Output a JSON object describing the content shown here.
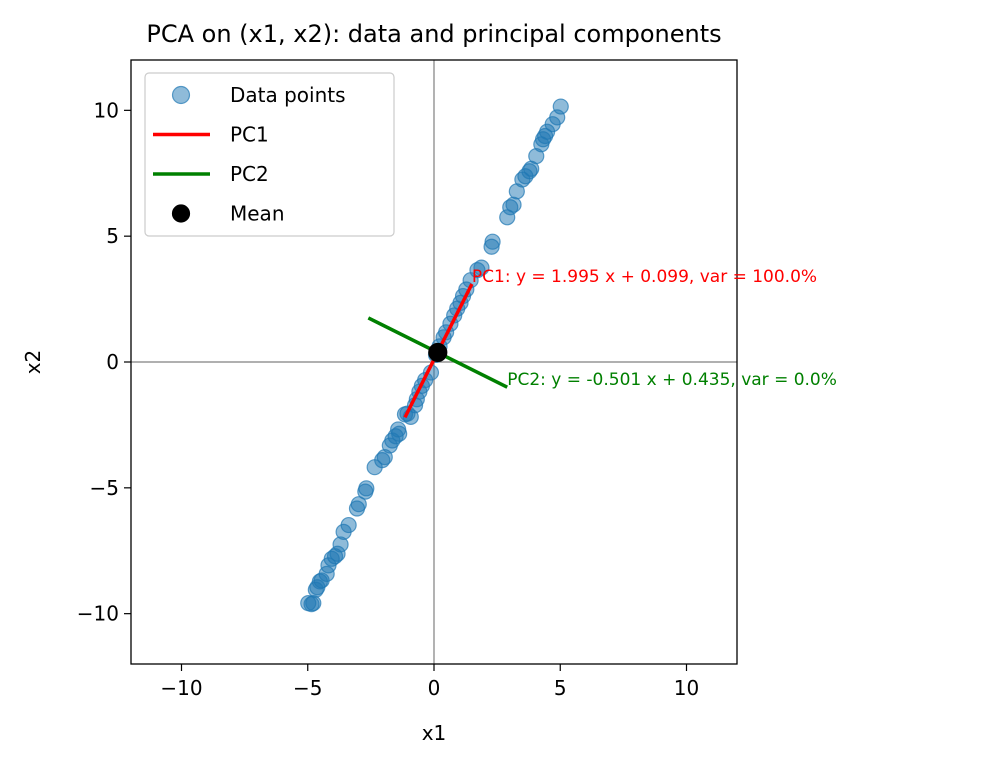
{
  "chart_data": {
    "type": "scatter",
    "title": "PCA on (x1, x2): data and principal components",
    "xlabel": "x1",
    "ylabel": "x2",
    "xlim": [
      -12,
      12
    ],
    "ylim": [
      -12,
      12
    ],
    "xticks": [
      -10,
      -5,
      0,
      5,
      10
    ],
    "yticks": [
      -10,
      -5,
      0,
      5,
      10
    ],
    "xtick_labels": [
      "−10",
      "−5",
      "0",
      "5",
      "10"
    ],
    "ytick_labels": [
      "−10",
      "−5",
      "0",
      "5",
      "10"
    ],
    "grid": false,
    "reference_lines": {
      "x": 0,
      "y": 0,
      "color": "#808080"
    },
    "legend": {
      "placement": "upper-left",
      "entries": [
        {
          "label": "Data points",
          "kind": "point",
          "color": "#1f77b4"
        },
        {
          "label": "PC1",
          "kind": "line",
          "color": "#ff0000"
        },
        {
          "label": "PC2",
          "kind": "line",
          "color": "#008000"
        },
        {
          "label": "Mean",
          "kind": "point",
          "color": "#000000"
        }
      ]
    },
    "series": [
      {
        "name": "Data points",
        "kind": "scatter",
        "color": "#1f77b4",
        "points": [
          [
            -4.98,
            -9.58
          ],
          [
            -4.85,
            -9.62
          ],
          [
            -4.78,
            -9.58
          ],
          [
            -4.68,
            -9.05
          ],
          [
            -4.62,
            -8.95
          ],
          [
            -4.52,
            -8.72
          ],
          [
            -4.45,
            -8.68
          ],
          [
            -4.25,
            -8.42
          ],
          [
            -4.18,
            -8.08
          ],
          [
            -4.05,
            -7.82
          ],
          [
            -3.92,
            -7.72
          ],
          [
            -3.82,
            -7.62
          ],
          [
            -3.7,
            -7.25
          ],
          [
            -3.58,
            -6.75
          ],
          [
            -3.38,
            -6.48
          ],
          [
            -3.05,
            -5.82
          ],
          [
            -2.98,
            -5.65
          ],
          [
            -2.72,
            -5.15
          ],
          [
            -2.68,
            -5.02
          ],
          [
            -2.35,
            -4.18
          ],
          [
            -2.05,
            -3.9
          ],
          [
            -1.95,
            -3.78
          ],
          [
            -1.75,
            -3.32
          ],
          [
            -1.65,
            -3.12
          ],
          [
            -1.52,
            -2.95
          ],
          [
            -1.38,
            -2.85
          ],
          [
            -1.42,
            -2.68
          ],
          [
            -1.15,
            -2.08
          ],
          [
            -1.05,
            -2.05
          ],
          [
            -0.92,
            -2.18
          ],
          [
            -0.75,
            -1.72
          ],
          [
            -0.68,
            -1.48
          ],
          [
            -0.58,
            -1.18
          ],
          [
            -0.48,
            -0.95
          ],
          [
            -0.35,
            -0.72
          ],
          [
            -0.12,
            -0.42
          ],
          [
            0.08,
            0.28
          ],
          [
            0.22,
            0.62
          ],
          [
            0.38,
            0.98
          ],
          [
            0.48,
            1.18
          ],
          [
            0.65,
            1.52
          ],
          [
            0.8,
            1.85
          ],
          [
            0.92,
            2.12
          ],
          [
            1.05,
            2.35
          ],
          [
            1.15,
            2.62
          ],
          [
            1.28,
            2.88
          ],
          [
            1.45,
            3.25
          ],
          [
            1.72,
            3.65
          ],
          [
            1.88,
            3.75
          ],
          [
            2.28,
            4.58
          ],
          [
            2.32,
            4.78
          ],
          [
            2.9,
            5.75
          ],
          [
            3.02,
            6.15
          ],
          [
            3.15,
            6.25
          ],
          [
            3.28,
            6.78
          ],
          [
            3.5,
            7.25
          ],
          [
            3.62,
            7.38
          ],
          [
            3.78,
            7.58
          ],
          [
            3.85,
            7.68
          ],
          [
            4.05,
            8.18
          ],
          [
            4.25,
            8.65
          ],
          [
            4.32,
            8.85
          ],
          [
            4.4,
            8.98
          ],
          [
            4.48,
            9.15
          ],
          [
            4.7,
            9.45
          ],
          [
            4.88,
            9.72
          ],
          [
            5.02,
            10.15
          ]
        ]
      },
      {
        "name": "PC1",
        "kind": "line",
        "color": "#ff0000",
        "points": [
          [
            -1.15,
            -2.2
          ],
          [
            1.5,
            3.1
          ]
        ]
      },
      {
        "name": "PC2",
        "kind": "line",
        "color": "#008000",
        "points": [
          [
            -2.6,
            1.75
          ],
          [
            2.9,
            -1.0
          ]
        ]
      },
      {
        "name": "Mean",
        "kind": "scatter",
        "color": "#000000",
        "points": [
          [
            0.15,
            0.38
          ]
        ]
      }
    ],
    "annotations": [
      {
        "text": "PC1: y = 1.995 x + 0.099,  var = 100.0%",
        "x": 1.5,
        "y": 3.1,
        "color": "#ff0000"
      },
      {
        "text": "PC2: y = -0.501 x + 0.435,  var = 0.0%",
        "x": 2.9,
        "y": -1.0,
        "color": "#008000"
      }
    ]
  }
}
